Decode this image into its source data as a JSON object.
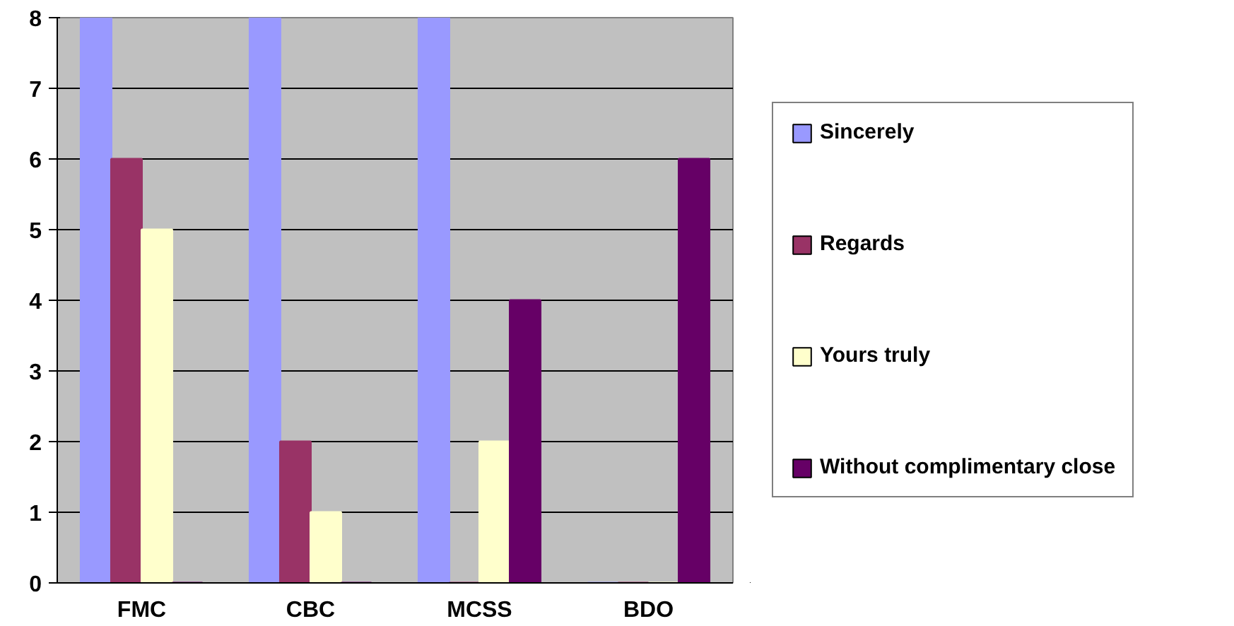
{
  "chart_data": {
    "type": "bar",
    "categories": [
      "FMC",
      "CBC",
      "MCSS",
      "BDO"
    ],
    "series": [
      {
        "name": "Sincerely",
        "color": "#9999ff",
        "values": [
          8,
          8,
          8,
          0
        ]
      },
      {
        "name": "Regards",
        "color": "#993366",
        "values": [
          6,
          2,
          0,
          0
        ]
      },
      {
        "name": "Yours truly",
        "color": "#ffffcc",
        "values": [
          5,
          1,
          2,
          0
        ]
      },
      {
        "name": "Without complimentary close",
        "color": "#660066",
        "values": [
          0,
          0,
          4,
          6
        ]
      }
    ],
    "ylim": [
      0,
      8
    ],
    "yticks": [
      0,
      1,
      2,
      3,
      4,
      5,
      6,
      7,
      8
    ],
    "grid": "y",
    "legend": "right"
  }
}
